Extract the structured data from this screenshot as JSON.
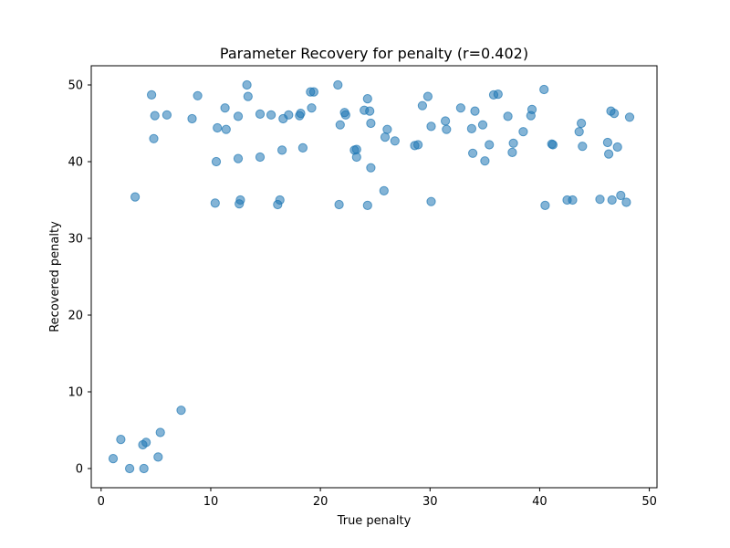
{
  "chart_data": {
    "type": "scatter",
    "title": "Parameter Recovery for penalty (r=0.402)",
    "xlabel": "True penalty",
    "ylabel": "Recovered penalty",
    "xlim": [
      -0.9,
      50.7
    ],
    "ylim": [
      -2.5,
      52.5
    ],
    "xticks": [
      0,
      10,
      20,
      30,
      40,
      50
    ],
    "yticks": [
      0,
      10,
      20,
      30,
      40,
      50
    ],
    "xtick_labels": [
      "0",
      "10",
      "20",
      "30",
      "40",
      "50"
    ],
    "ytick_labels": [
      "0",
      "10",
      "20",
      "30",
      "40",
      "50"
    ],
    "grid": false,
    "point_color": "#1f77b4",
    "point_alpha": 0.55,
    "x": [
      1.1,
      1.8,
      2.6,
      3.1,
      3.8,
      3.9,
      4.1,
      4.6,
      4.8,
      4.9,
      5.2,
      5.4,
      6.0,
      7.3,
      8.3,
      8.8,
      10.4,
      10.5,
      10.6,
      11.3,
      11.4,
      12.5,
      12.5,
      12.6,
      12.7,
      13.3,
      13.4,
      14.5,
      14.5,
      15.5,
      16.1,
      16.3,
      16.5,
      16.6,
      17.1,
      18.1,
      18.2,
      18.4,
      19.1,
      19.2,
      19.4,
      21.6,
      21.7,
      21.8,
      22.2,
      22.3,
      23.1,
      23.3,
      23.3,
      24.0,
      24.3,
      24.3,
      24.5,
      24.6,
      24.6,
      25.8,
      25.9,
      26.1,
      26.8,
      28.6,
      28.9,
      29.3,
      29.8,
      30.1,
      30.1,
      31.4,
      31.5,
      32.8,
      33.8,
      33.9,
      34.1,
      34.8,
      35.0,
      35.4,
      35.8,
      36.2,
      37.1,
      37.5,
      37.6,
      38.5,
      39.2,
      39.3,
      40.4,
      40.5,
      41.1,
      41.2,
      42.5,
      43.0,
      43.6,
      43.8,
      43.9,
      45.5,
      46.2,
      46.3,
      46.5,
      46.6,
      46.8,
      47.1,
      47.4,
      47.9,
      48.2
    ],
    "y": [
      1.3,
      3.8,
      0.0,
      35.4,
      3.1,
      0.0,
      3.4,
      48.7,
      43.0,
      46.0,
      1.5,
      4.7,
      46.1,
      7.6,
      45.6,
      48.6,
      34.6,
      40.0,
      44.4,
      47.0,
      44.2,
      45.9,
      40.4,
      34.5,
      35.0,
      50.0,
      48.5,
      46.2,
      40.6,
      46.1,
      34.4,
      35.0,
      41.5,
      45.6,
      46.1,
      46.0,
      46.3,
      41.8,
      49.1,
      47.0,
      49.1,
      50.0,
      34.4,
      44.8,
      46.4,
      46.1,
      41.5,
      41.6,
      40.6,
      46.7,
      48.2,
      34.3,
      46.6,
      45.0,
      39.2,
      36.2,
      43.2,
      44.2,
      42.7,
      42.1,
      42.2,
      47.3,
      48.5,
      44.6,
      34.8,
      45.3,
      44.2,
      47.0,
      44.3,
      41.1,
      46.6,
      44.8,
      40.1,
      42.2,
      48.7,
      48.8,
      45.9,
      41.2,
      42.4,
      43.9,
      46.0,
      46.8,
      49.4,
      34.3,
      42.3,
      42.2,
      35.0,
      35.0,
      43.9,
      45.0,
      42.0,
      35.1,
      42.5,
      41.0,
      46.6,
      35.0,
      46.3,
      41.9,
      35.6,
      34.7,
      45.8
    ]
  }
}
